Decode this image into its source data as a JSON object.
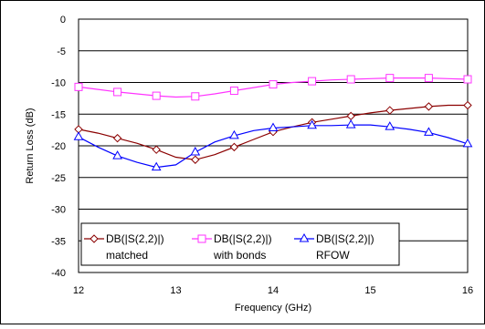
{
  "chart_data": {
    "type": "line",
    "xlabel": "Frequency (GHz)",
    "ylabel": "Return Loss (dB)",
    "xlim": [
      12,
      16
    ],
    "ylim": [
      -40,
      0
    ],
    "x_ticks": [
      12,
      13,
      14,
      15,
      16
    ],
    "y_ticks": [
      0,
      -5,
      -10,
      -15,
      -20,
      -25,
      -30,
      -35,
      -40
    ],
    "grid": "horizontal",
    "legend_placement": "bottom-left",
    "series": [
      {
        "name": "DB(|S(2,2)|)",
        "sublabel": "matched",
        "color": "#8b0000",
        "marker": "diamond",
        "points": [
          [
            12,
            -17.4
          ],
          [
            12.2,
            -18.0
          ],
          [
            12.4,
            -18.8
          ],
          [
            12.6,
            -19.6
          ],
          [
            12.8,
            -20.6
          ],
          [
            13.0,
            -21.8
          ],
          [
            13.2,
            -22.2
          ],
          [
            13.4,
            -21.4
          ],
          [
            13.6,
            -20.2
          ],
          [
            13.8,
            -19.0
          ],
          [
            14.0,
            -17.8
          ],
          [
            14.2,
            -17.0
          ],
          [
            14.4,
            -16.3
          ],
          [
            14.6,
            -15.8
          ],
          [
            14.8,
            -15.3
          ],
          [
            15.0,
            -14.8
          ],
          [
            15.2,
            -14.4
          ],
          [
            15.4,
            -14.1
          ],
          [
            15.6,
            -13.8
          ],
          [
            15.8,
            -13.6
          ],
          [
            16.0,
            -13.6
          ]
        ],
        "marker_x": [
          12,
          12.4,
          12.8,
          13.2,
          13.6,
          14.0,
          14.4,
          14.8,
          15.2,
          15.6,
          16.0
        ]
      },
      {
        "name": "DB(|S(2,2)|)",
        "sublabel": "with bonds",
        "color": "#ff33ff",
        "marker": "square",
        "points": [
          [
            12,
            -10.7
          ],
          [
            12.2,
            -11.1
          ],
          [
            12.4,
            -11.5
          ],
          [
            12.6,
            -11.8
          ],
          [
            12.8,
            -12.1
          ],
          [
            13.0,
            -12.3
          ],
          [
            13.2,
            -12.2
          ],
          [
            13.4,
            -11.8
          ],
          [
            13.6,
            -11.3
          ],
          [
            13.8,
            -10.8
          ],
          [
            14.0,
            -10.3
          ],
          [
            14.2,
            -10.0
          ],
          [
            14.4,
            -9.8
          ],
          [
            14.6,
            -9.6
          ],
          [
            14.8,
            -9.5
          ],
          [
            15.0,
            -9.4
          ],
          [
            15.2,
            -9.3
          ],
          [
            15.4,
            -9.3
          ],
          [
            15.6,
            -9.3
          ],
          [
            15.8,
            -9.4
          ],
          [
            16.0,
            -9.5
          ]
        ],
        "marker_x": [
          12,
          12.4,
          12.8,
          13.2,
          13.6,
          14.0,
          14.4,
          14.8,
          15.2,
          15.6,
          16.0
        ]
      },
      {
        "name": "DB(|S(2,2)|)",
        "sublabel": "RFOW",
        "color": "#0000ff",
        "marker": "triangle",
        "points": [
          [
            12,
            -18.6
          ],
          [
            12.2,
            -20.2
          ],
          [
            12.4,
            -21.6
          ],
          [
            12.6,
            -22.6
          ],
          [
            12.8,
            -23.4
          ],
          [
            13.0,
            -23.0
          ],
          [
            13.2,
            -21.0
          ],
          [
            13.4,
            -19.4
          ],
          [
            13.6,
            -18.4
          ],
          [
            13.8,
            -17.6
          ],
          [
            14.0,
            -17.2
          ],
          [
            14.2,
            -17.0
          ],
          [
            14.4,
            -16.8
          ],
          [
            14.6,
            -16.8
          ],
          [
            14.8,
            -16.7
          ],
          [
            15.0,
            -16.7
          ],
          [
            15.2,
            -17.0
          ],
          [
            15.4,
            -17.4
          ],
          [
            15.6,
            -17.9
          ],
          [
            15.8,
            -18.7
          ],
          [
            16.0,
            -19.7
          ]
        ],
        "marker_x": [
          12,
          12.4,
          12.8,
          13.2,
          13.6,
          14.0,
          14.4,
          14.8,
          15.2,
          15.6,
          16.0
        ]
      }
    ]
  }
}
